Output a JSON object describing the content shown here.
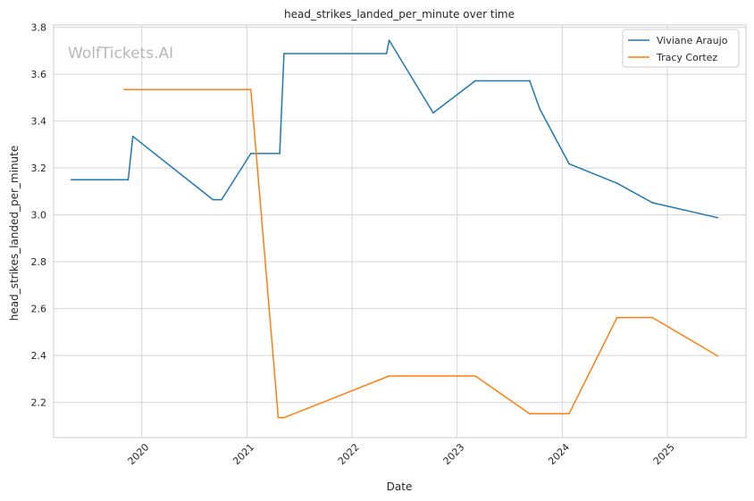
{
  "chart_data": {
    "type": "line",
    "title": "head_strikes_landed_per_minute over time",
    "xlabel": "Date",
    "ylabel": "head_strikes_landed_per_minute",
    "watermark": "WolfTickets.AI",
    "x_ticks": [
      "2020",
      "2021",
      "2022",
      "2023",
      "2024",
      "2025"
    ],
    "y_ticks": [
      "2.2",
      "2.4",
      "2.6",
      "2.8",
      "3.0",
      "3.2",
      "3.4",
      "3.6",
      "3.8"
    ],
    "ylim": [
      2.05,
      3.81
    ],
    "xlim": [
      "2019-03-01",
      "2025-10-01"
    ],
    "grid": true,
    "legend_position": "top-right",
    "series": [
      {
        "name": "Viviane Araujo",
        "color": "#1f77b4",
        "points": [
          [
            "2019-05-01",
            3.15
          ],
          [
            "2019-11-15",
            3.15
          ],
          [
            "2019-12-01",
            3.335
          ],
          [
            "2020-09-05",
            3.065
          ],
          [
            "2020-10-05",
            3.065
          ],
          [
            "2021-01-15",
            3.262
          ],
          [
            "2021-04-25",
            3.262
          ],
          [
            "2021-05-10",
            3.688
          ],
          [
            "2022-05-01",
            3.688
          ],
          [
            "2022-05-10",
            3.745
          ],
          [
            "2022-10-10",
            3.435
          ],
          [
            "2023-03-05",
            3.572
          ],
          [
            "2023-09-10",
            3.572
          ],
          [
            "2023-10-15",
            3.452
          ],
          [
            "2024-01-25",
            3.218
          ],
          [
            "2024-07-10",
            3.135
          ],
          [
            "2024-11-10",
            3.052
          ],
          [
            "2025-06-25",
            2.988
          ]
        ]
      },
      {
        "name": "Tracy Cortez",
        "color": "#ff7f0e",
        "points": [
          [
            "2019-11-01",
            3.535
          ],
          [
            "2021-01-15",
            3.535
          ],
          [
            "2021-04-20",
            2.135
          ],
          [
            "2021-05-10",
            2.135
          ],
          [
            "2022-05-10",
            2.313
          ],
          [
            "2023-03-05",
            2.313
          ],
          [
            "2023-09-10",
            2.152
          ],
          [
            "2024-01-25",
            2.152
          ],
          [
            "2024-07-10",
            2.562
          ],
          [
            "2024-11-10",
            2.562
          ],
          [
            "2025-06-25",
            2.398
          ]
        ]
      }
    ]
  }
}
